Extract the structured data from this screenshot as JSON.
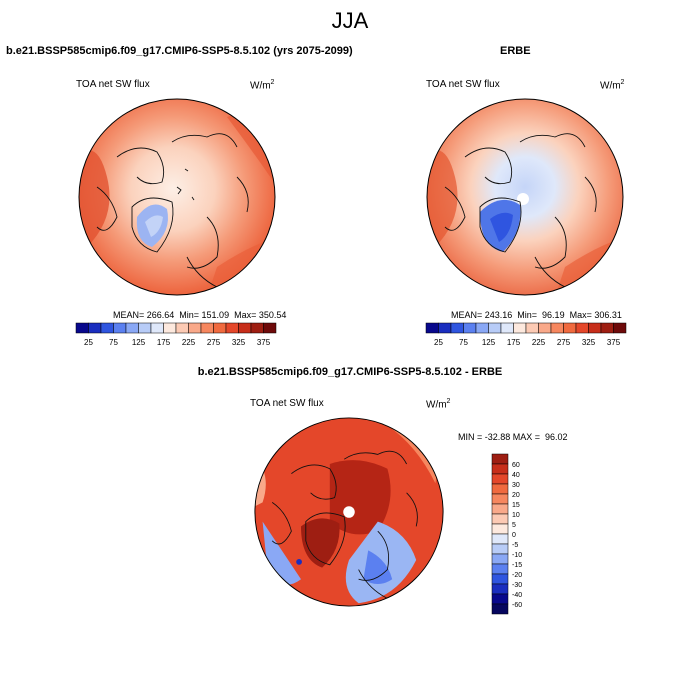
{
  "figure": {
    "title": "JJA",
    "left_subtitle": "b.e21.BSSP585cmip6.f09_g17.CMIP6-SSP5-8.5.102 (yrs 2075-2099)",
    "right_subtitle": "ERBE",
    "bottom_subtitle": "b.e21.BSSP585cmip6.f09_g17.CMIP6-SSP5-8.5.102 - ERBE"
  },
  "chart_data": [
    {
      "type": "heatmap",
      "title": "b.e21.BSSP585cmip6.f09_g17.CMIP6-SSP5-8.5.102 (yrs 2075-2099)",
      "variable": "TOA net SW flux",
      "units": "W/m",
      "units_superscript": "2",
      "stats": {
        "mean": 266.64,
        "min": 151.09,
        "max": 350.54
      },
      "stats_text": "MEAN= 266.64  Min= 151.09  Max= 350.54",
      "colorbar": {
        "orientation": "horizontal",
        "tick_labels": [
          "25",
          "75",
          "125",
          "175",
          "225",
          "275",
          "325",
          "375"
        ],
        "colors": [
          "#08088c",
          "#1a2ebf",
          "#2f55e0",
          "#5b80f0",
          "#8aa8f5",
          "#b8ccf7",
          "#dfe8fa",
          "#fde9de",
          "#fccab4",
          "#f9a98a",
          "#f6875f",
          "#f06a3f",
          "#e4472a",
          "#c72e1a",
          "#9e1e12",
          "#6e0a0a"
        ]
      }
    },
    {
      "type": "heatmap",
      "title": "ERBE",
      "variable": "TOA net SW flux",
      "units": "W/m",
      "units_superscript": "2",
      "stats": {
        "mean": 243.16,
        "min": 96.19,
        "max": 306.31
      },
      "stats_text": "MEAN= 243.16  Min=  96.19  Max= 306.31",
      "colorbar": {
        "orientation": "horizontal",
        "tick_labels": [
          "25",
          "75",
          "125",
          "175",
          "225",
          "275",
          "325",
          "375"
        ],
        "colors": [
          "#08088c",
          "#1a2ebf",
          "#2f55e0",
          "#5b80f0",
          "#8aa8f5",
          "#b8ccf7",
          "#dfe8fa",
          "#fde9de",
          "#fccab4",
          "#f9a98a",
          "#f6875f",
          "#f06a3f",
          "#e4472a",
          "#c72e1a",
          "#9e1e12",
          "#6e0a0a"
        ]
      }
    },
    {
      "type": "heatmap",
      "title": "b.e21.BSSP585cmip6.f09_g17.CMIP6-SSP5-8.5.102 - ERBE",
      "variable": "TOA net SW flux",
      "units": "W/m",
      "units_superscript": "2",
      "stats": {
        "min": -32.88,
        "max": 96.02
      },
      "stats_text": "MIN = -32.88 MAX =  96.02",
      "colorbar": {
        "orientation": "vertical",
        "tick_labels": [
          "60",
          "40",
          "30",
          "20",
          "15",
          "10",
          "5",
          "0",
          "-5",
          "-10",
          "-15",
          "-20",
          "-30",
          "-40",
          "-60"
        ],
        "colors": [
          "#9e1e12",
          "#c72e1a",
          "#e4472a",
          "#f06a3f",
          "#f6875f",
          "#f9a98a",
          "#fccab4",
          "#fde9de",
          "#dfe8fa",
          "#b8ccf7",
          "#8aa8f5",
          "#5b80f0",
          "#2f55e0",
          "#1a2ebf",
          "#08088c",
          "#06065e"
        ]
      }
    }
  ]
}
